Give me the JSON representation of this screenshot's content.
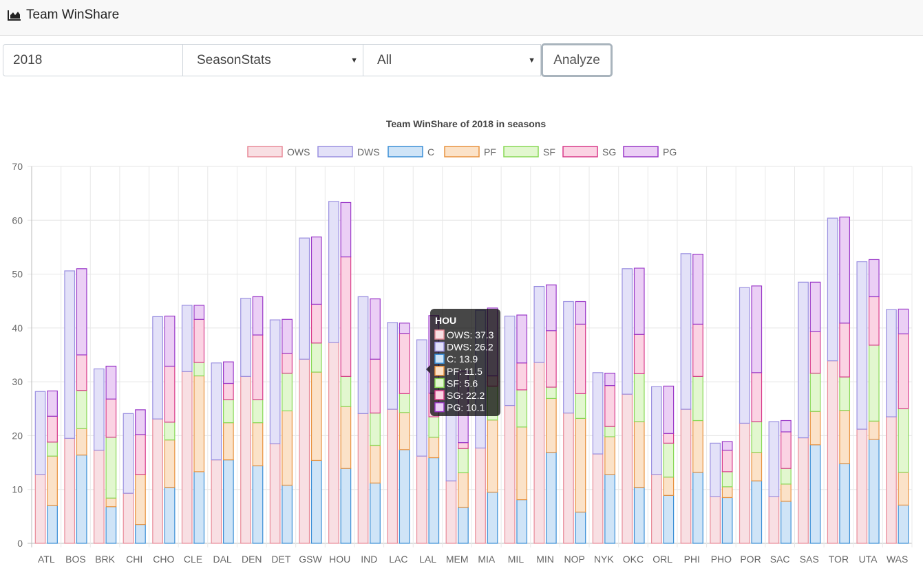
{
  "navbar": {
    "brand": "Team WinShare",
    "brand_icon": "area-chart-icon"
  },
  "controls": {
    "year_value": "2018",
    "stat_select": "SeasonStats",
    "filter_select": "All",
    "analyze_label": "Analyze"
  },
  "chart_data": {
    "type": "bar",
    "title": "Team WinShare of 2018 in seasons",
    "categories": [
      "ATL",
      "BOS",
      "BRK",
      "CHI",
      "CHO",
      "CLE",
      "DAL",
      "DEN",
      "DET",
      "GSW",
      "HOU",
      "IND",
      "LAC",
      "LAL",
      "MEM",
      "MIA",
      "MIL",
      "MIN",
      "NOP",
      "NYK",
      "OKC",
      "ORL",
      "PHI",
      "PHO",
      "POR",
      "SAC",
      "SAS",
      "TOR",
      "UTA",
      "WAS"
    ],
    "ylim": [
      0,
      70
    ],
    "yticks": [
      0,
      10,
      20,
      30,
      40,
      50,
      60,
      70
    ],
    "stacks": [
      {
        "name": "team",
        "series": [
          {
            "name": "OWS",
            "fill": "#f8dfe3",
            "border": "#e88a98",
            "values": [
              12.8,
              19.5,
              17.3,
              9.3,
              23.1,
              31.9,
              15.5,
              31.0,
              18.5,
              34.2,
              37.3,
              24.1,
              24.9,
              16.2,
              11.6,
              17.7,
              25.6,
              33.6,
              24.2,
              16.6,
              27.7,
              12.8,
              24.9,
              8.7,
              22.3,
              8.7,
              19.6,
              33.9,
              21.2,
              23.5
            ]
          },
          {
            "name": "DWS",
            "fill": "#e3e1f8",
            "border": "#9a8fe0",
            "values": [
              15.4,
              31.1,
              15.1,
              14.8,
              19.0,
              12.3,
              18.0,
              14.5,
              23.0,
              22.5,
              26.2,
              21.7,
              16.1,
              21.6,
              20.4,
              25.6,
              16.6,
              14.1,
              20.7,
              15.1,
              23.3,
              16.3,
              28.9,
              9.9,
              25.2,
              13.9,
              28.9,
              26.5,
              31.1,
              19.9
            ]
          }
        ]
      },
      {
        "name": "positions",
        "series": [
          {
            "name": "C",
            "fill": "#cfe4f7",
            "border": "#3a8ed6",
            "values": [
              7.0,
              16.4,
              6.8,
              3.5,
              10.4,
              13.3,
              15.5,
              14.4,
              10.8,
              15.4,
              13.9,
              11.2,
              17.4,
              15.9,
              6.7,
              9.5,
              8.1,
              16.9,
              5.8,
              12.8,
              10.4,
              8.9,
              13.2,
              8.5,
              11.6,
              7.8,
              18.3,
              14.8,
              19.3,
              7.1
            ]
          },
          {
            "name": "PF",
            "fill": "#fbe2c8",
            "border": "#e8923e",
            "values": [
              9.2,
              4.9,
              1.6,
              9.3,
              8.8,
              17.8,
              6.9,
              8.0,
              13.8,
              16.4,
              11.5,
              7.0,
              6.9,
              3.8,
              6.4,
              13.4,
              13.5,
              10.0,
              17.4,
              7.0,
              12.2,
              3.4,
              9.6,
              2.0,
              5.3,
              3.2,
              6.2,
              9.9,
              3.4,
              6.1
            ]
          },
          {
            "name": "SF",
            "fill": "#e2f7cf",
            "border": "#88d855",
            "values": [
              2.6,
              7.1,
              11.3,
              0.0,
              3.3,
              2.5,
              4.3,
              4.3,
              7.0,
              5.4,
              5.6,
              6.0,
              3.5,
              3.8,
              4.5,
              6.3,
              6.9,
              2.1,
              4.6,
              1.9,
              8.9,
              6.3,
              8.2,
              2.8,
              5.7,
              2.9,
              7.1,
              6.2,
              14.1,
              11.8
            ]
          },
          {
            "name": "SG",
            "fill": "#fbd3e3",
            "border": "#d83a8a",
            "values": [
              4.8,
              6.6,
              7.1,
              7.4,
              10.4,
              8.0,
              3.0,
              12.0,
              3.7,
              7.2,
              22.2,
              10.0,
              11.2,
              4.4,
              1.1,
              1.9,
              5.0,
              10.5,
              12.9,
              7.6,
              7.3,
              1.8,
              9.7,
              4.0,
              9.1,
              6.8,
              7.7,
              10.0,
              9.0,
              13.9
            ]
          },
          {
            "name": "PG",
            "fill": "#ebcff5",
            "border": "#9a38c8",
            "values": [
              4.7,
              16.0,
              6.1,
              4.6,
              9.3,
              2.6,
              4.0,
              7.1,
              6.3,
              12.5,
              10.1,
              11.2,
              1.9,
              14.4,
              13.3,
              12.6,
              8.9,
              8.5,
              4.2,
              2.3,
              12.3,
              8.8,
              13.0,
              1.6,
              16.1,
              2.1,
              9.2,
              19.7,
              6.9,
              4.6
            ]
          }
        ]
      }
    ],
    "tooltip": {
      "title": "HOU",
      "lines": [
        "OWS: 37.3",
        "DWS: 26.2",
        "C: 13.9",
        "PF: 11.5",
        "SF: 5.6",
        "SG: 22.2",
        "PG: 10.1"
      ]
    }
  }
}
